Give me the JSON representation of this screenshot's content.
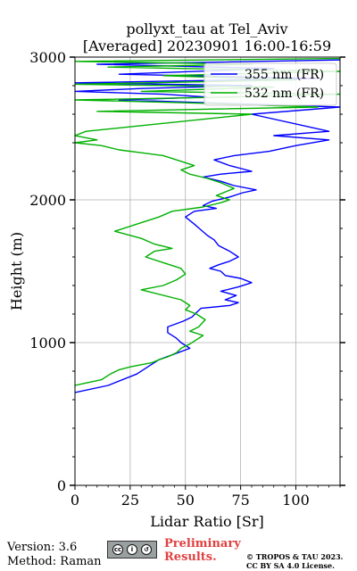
{
  "chart_data": {
    "type": "line",
    "title": "pollyxt_tau at Tel_Aviv",
    "subtitle": "[Averaged] 20230901 16:00-16:59",
    "xlabel": "Lidar Ratio [Sr]",
    "ylabel": "Height (m)",
    "xlim": [
      0,
      120
    ],
    "ylim": [
      0,
      3000
    ],
    "xticks": [
      0,
      25,
      50,
      75,
      100
    ],
    "yticks": [
      0,
      1000,
      2000,
      3000
    ],
    "grid": true,
    "legend_position": "top-right",
    "series": [
      {
        "name": "355 nm (FR)",
        "color": "#0000ff",
        "points": [
          [
            0,
            650
          ],
          [
            15,
            700
          ],
          [
            28,
            780
          ],
          [
            34,
            840
          ],
          [
            38,
            880
          ],
          [
            45,
            920
          ],
          [
            52,
            960
          ],
          [
            48,
            1000
          ],
          [
            46,
            1030
          ],
          [
            42,
            1070
          ],
          [
            42,
            1110
          ],
          [
            49,
            1150
          ],
          [
            53,
            1180
          ],
          [
            55,
            1210
          ],
          [
            57,
            1240
          ],
          [
            70,
            1260
          ],
          [
            74,
            1280
          ],
          [
            68,
            1300
          ],
          [
            73,
            1330
          ],
          [
            66,
            1360
          ],
          [
            74,
            1390
          ],
          [
            80,
            1420
          ],
          [
            75,
            1450
          ],
          [
            68,
            1470
          ],
          [
            66,
            1500
          ],
          [
            61,
            1520
          ],
          [
            65,
            1545
          ],
          [
            70,
            1570
          ],
          [
            74,
            1600
          ],
          [
            70,
            1640
          ],
          [
            65,
            1680
          ],
          [
            63,
            1720
          ],
          [
            60,
            1750
          ],
          [
            57,
            1790
          ],
          [
            54,
            1830
          ],
          [
            50,
            1880
          ],
          [
            54,
            1920
          ],
          [
            64,
            1940
          ],
          [
            58,
            1960
          ],
          [
            62,
            1990
          ],
          [
            70,
            2020
          ],
          [
            76,
            2050
          ],
          [
            82,
            2070
          ],
          [
            72,
            2100
          ],
          [
            66,
            2130
          ],
          [
            58,
            2160
          ],
          [
            66,
            2180
          ],
          [
            80,
            2200
          ],
          [
            70,
            2240
          ],
          [
            63,
            2280
          ],
          [
            72,
            2310
          ],
          [
            88,
            2340
          ],
          [
            100,
            2380
          ],
          [
            115,
            2420
          ],
          [
            90,
            2450
          ],
          [
            115,
            2480
          ],
          [
            80,
            2600
          ],
          [
            120,
            2650
          ],
          [
            20,
            2700
          ],
          [
            60,
            2720
          ],
          [
            40,
            2740
          ],
          [
            0,
            2760
          ],
          [
            30,
            2780
          ],
          [
            80,
            2800
          ],
          [
            0,
            2820
          ],
          [
            110,
            2850
          ],
          [
            20,
            2880
          ],
          [
            90,
            2920
          ],
          [
            10,
            2950
          ],
          [
            120,
            2980
          ]
        ]
      },
      {
        "name": "532 nm (FR)",
        "color": "#00b000",
        "points": [
          [
            0,
            700
          ],
          [
            12,
            740
          ],
          [
            16,
            780
          ],
          [
            20,
            810
          ],
          [
            25,
            830
          ],
          [
            35,
            860
          ],
          [
            38,
            880
          ],
          [
            42,
            900
          ],
          [
            46,
            930
          ],
          [
            48,
            960
          ],
          [
            52,
            990
          ],
          [
            55,
            1020
          ],
          [
            58,
            1050
          ],
          [
            52,
            1080
          ],
          [
            56,
            1110
          ],
          [
            59,
            1160
          ],
          [
            55,
            1200
          ],
          [
            50,
            1230
          ],
          [
            52,
            1260
          ],
          [
            48,
            1300
          ],
          [
            30,
            1370
          ],
          [
            40,
            1400
          ],
          [
            46,
            1440
          ],
          [
            50,
            1480
          ],
          [
            48,
            1520
          ],
          [
            40,
            1560
          ],
          [
            32,
            1600
          ],
          [
            36,
            1640
          ],
          [
            44,
            1660
          ],
          [
            36,
            1690
          ],
          [
            30,
            1730
          ],
          [
            18,
            1780
          ],
          [
            28,
            1830
          ],
          [
            38,
            1880
          ],
          [
            44,
            1920
          ],
          [
            58,
            1950
          ],
          [
            66,
            1980
          ],
          [
            70,
            2000
          ],
          [
            64,
            2030
          ],
          [
            72,
            2080
          ],
          [
            66,
            2120
          ],
          [
            60,
            2150
          ],
          [
            52,
            2180
          ],
          [
            48,
            2210
          ],
          [
            54,
            2240
          ],
          [
            48,
            2270
          ],
          [
            40,
            2310
          ],
          [
            30,
            2330
          ],
          [
            20,
            2350
          ],
          [
            12,
            2380
          ],
          [
            0,
            2400
          ],
          [
            10,
            2420
          ],
          [
            0,
            2450
          ],
          [
            5,
            2480
          ],
          [
            80,
            2600
          ],
          [
            10,
            2620
          ],
          [
            110,
            2650
          ],
          [
            50,
            2680
          ],
          [
            0,
            2700
          ],
          [
            70,
            2720
          ],
          [
            120,
            2740
          ],
          [
            30,
            2760
          ],
          [
            90,
            2790
          ],
          [
            0,
            2810
          ],
          [
            100,
            2840
          ],
          [
            40,
            2870
          ],
          [
            120,
            2900
          ],
          [
            15,
            2930
          ],
          [
            80,
            2950
          ],
          [
            0,
            2970
          ],
          [
            120,
            2990
          ]
        ]
      }
    ]
  },
  "footer": {
    "version": "Version: 3.6",
    "method": "Method: Raman",
    "preliminary_line1": "Preliminary",
    "preliminary_line2": "Results.",
    "copyright_line1": "© TROPOS & TAU 2023.",
    "copyright_line2": "CC BY SA 4.0 License.",
    "cc_icons": [
      "cc-icon",
      "by-icon",
      "sa-icon"
    ]
  }
}
